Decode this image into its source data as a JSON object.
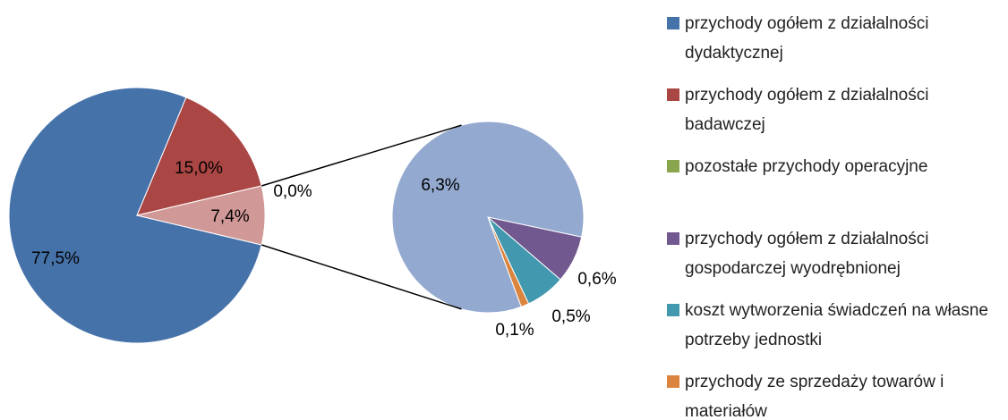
{
  "chart_data": {
    "type": "pie",
    "categories": [
      "przychody ogółem z działalności dydaktycznej",
      "przychody ogółem z działalności badawczej",
      "pozostałe przychody operacyjne",
      null
    ],
    "values": [
      77.5,
      15.0,
      0.0,
      7.4
    ],
    "value_labels": [
      "77,5%",
      "15,0%",
      "0,0%",
      "7,4%"
    ],
    "colors": [
      "#4672aa",
      "#aa4643",
      "#89a54e",
      "#d09896"
    ],
    "secondary": {
      "categories": [
        null,
        "przychody ogółem z działalności gospodarczej wyodrębnionej",
        "koszt wytworzenia świadczeń na własne potrzeby jednostki",
        "przychody ze sprzedaży towarów i materiałów"
      ],
      "values": [
        6.3,
        0.6,
        0.5,
        0.1
      ],
      "value_labels": [
        "6,3%",
        "0,6%",
        "0,5%",
        "0,1%"
      ],
      "colors": [
        "#93a9cf",
        "#71588f",
        "#4198af",
        "#db843d"
      ]
    },
    "legend": "right"
  }
}
